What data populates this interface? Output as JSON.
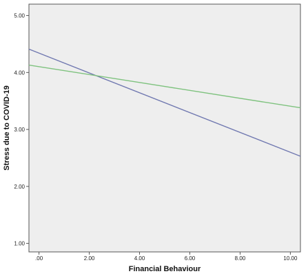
{
  "chart_data": {
    "type": "line",
    "title": "",
    "xlabel": "Financial Behaviour",
    "ylabel": "Stress due to COVID-19",
    "xlim": [
      -0.4,
      10.4
    ],
    "ylim": [
      0.85,
      5.2
    ],
    "xticks": [
      0,
      2,
      4,
      6,
      8,
      10
    ],
    "xtick_labels": [
      ".00",
      "2.00",
      "4.00",
      "6.00",
      "8.00",
      "10.00"
    ],
    "yticks": [
      1,
      2,
      3,
      4,
      5
    ],
    "ytick_labels": [
      "1.00",
      "2.00",
      "3.00",
      "4.00",
      "5.00"
    ],
    "grid": false,
    "legend": "none",
    "plot_background": "#eeeeee",
    "series": [
      {
        "color": "#7078b0",
        "x": [
          -0.4,
          10.4
        ],
        "y": [
          4.41,
          2.53
        ]
      },
      {
        "color": "#7ec27e",
        "x": [
          -0.4,
          10.4
        ],
        "y": [
          4.13,
          3.38
        ]
      }
    ]
  }
}
